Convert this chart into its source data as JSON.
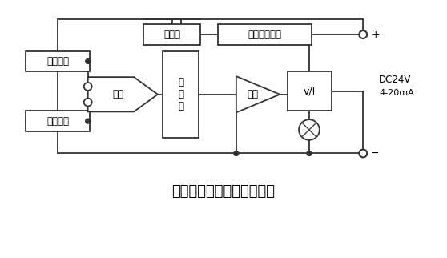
{
  "title": "热电偶温度变送器原理框图",
  "title_fontsize": 13,
  "bg_color": "#ffffff",
  "line_color": "#333333",
  "box_fill": "#ffffff",
  "box_edge": "#333333",
  "dc_label": "DC24V",
  "ma_label": "4-20mA"
}
